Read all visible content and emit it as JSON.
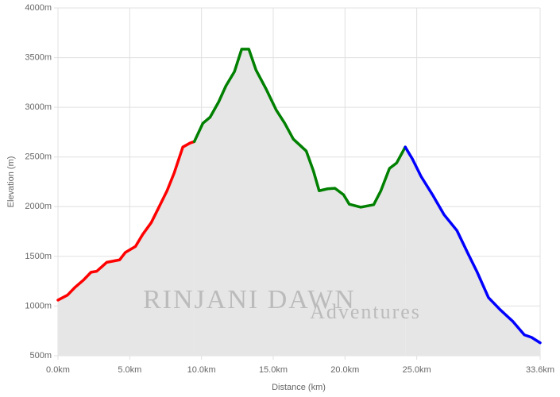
{
  "chart_data": {
    "type": "line",
    "xlabel": "Distance (km)",
    "ylabel": "Elevation (m)",
    "watermark": [
      "RINJANI DAWN",
      "Adventures"
    ],
    "area_color": "#e6e6e6",
    "grid": true,
    "xlim": [
      0,
      33.6
    ],
    "xticks": [
      {
        "value": 0,
        "label": "0.0km"
      },
      {
        "value": 5,
        "label": "5.0km"
      },
      {
        "value": 10,
        "label": "10.0km"
      },
      {
        "value": 15,
        "label": "15.0km"
      },
      {
        "value": 20,
        "label": "20.0km"
      },
      {
        "value": 25,
        "label": "25.0km"
      },
      {
        "value": 33.6,
        "label": "33.6km"
      }
    ],
    "ylim": [
      500,
      4000
    ],
    "yticks": [
      {
        "value": 500,
        "label": "500m"
      },
      {
        "value": 1000,
        "label": "1000m"
      },
      {
        "value": 1500,
        "label": "1500m"
      },
      {
        "value": 2000,
        "label": "2000m"
      },
      {
        "value": 2500,
        "label": "2500m"
      },
      {
        "value": 3000,
        "label": "3000m"
      },
      {
        "value": 3500,
        "label": "3500m"
      },
      {
        "value": 4000,
        "label": "4000m"
      }
    ],
    "series": [
      {
        "color": "#ff0000",
        "x": [
          0,
          0.66,
          1.2,
          1.8,
          2.3,
          2.7,
          3.4,
          4.3,
          4.7,
          5.4,
          5.9,
          6.5,
          7.0,
          7.6,
          8.1,
          8.7,
          9.2,
          9.5
        ],
        "values": [
          1060,
          1110,
          1190,
          1265,
          1340,
          1350,
          1440,
          1465,
          1540,
          1600,
          1720,
          1840,
          1985,
          2160,
          2340,
          2600,
          2640,
          2655
        ]
      },
      {
        "color": "#008000",
        "x": [
          9.5,
          10.1,
          10.6,
          11.2,
          11.7,
          12.3,
          12.8,
          13.3,
          13.8,
          14.5,
          15.2,
          15.8,
          16.4,
          17.3,
          17.8,
          18.2,
          18.8,
          19.3,
          19.9,
          20.3,
          21.1,
          22.0,
          22.5,
          23.1,
          23.6,
          24.2
        ],
        "values": [
          2655,
          2840,
          2900,
          3055,
          3215,
          3360,
          3585,
          3585,
          3375,
          3185,
          2975,
          2840,
          2680,
          2560,
          2360,
          2160,
          2180,
          2185,
          2120,
          2025,
          1995,
          2020,
          2160,
          2385,
          2440,
          2600
        ]
      },
      {
        "color": "#0000ff",
        "x": [
          24.2,
          24.7,
          25.3,
          26.1,
          26.9,
          27.8,
          28.6,
          29.2,
          30.0,
          30.8,
          31.7,
          32.5,
          33.0,
          33.6
        ],
        "values": [
          2600,
          2480,
          2305,
          2120,
          1920,
          1760,
          1520,
          1345,
          1085,
          965,
          845,
          710,
          685,
          630
        ]
      }
    ]
  }
}
